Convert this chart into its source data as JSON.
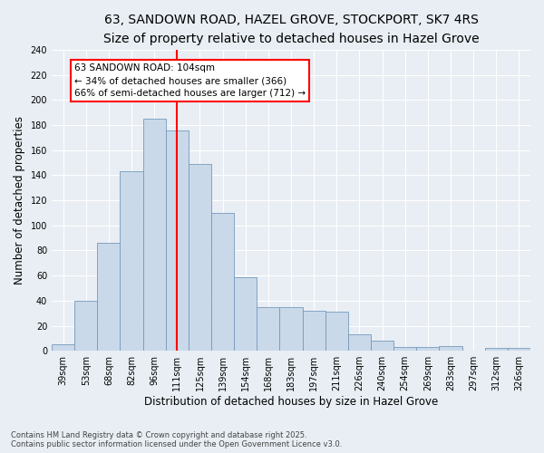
{
  "title_line1": "63, SANDOWN ROAD, HAZEL GROVE, STOCKPORT, SK7 4RS",
  "title_line2": "Size of property relative to detached houses in Hazel Grove",
  "xlabel": "Distribution of detached houses by size in Hazel Grove",
  "ylabel": "Number of detached properties",
  "categories": [
    "39sqm",
    "53sqm",
    "68sqm",
    "82sqm",
    "96sqm",
    "111sqm",
    "125sqm",
    "139sqm",
    "154sqm",
    "168sqm",
    "183sqm",
    "197sqm",
    "211sqm",
    "226sqm",
    "240sqm",
    "254sqm",
    "269sqm",
    "283sqm",
    "297sqm",
    "312sqm",
    "326sqm"
  ],
  "values": [
    5,
    40,
    86,
    143,
    185,
    176,
    149,
    110,
    59,
    35,
    35,
    32,
    31,
    13,
    8,
    3,
    3,
    4,
    0,
    2,
    2
  ],
  "bar_color": "#c9d9e9",
  "bar_edge_color": "#7799bb",
  "vline_x": 5,
  "vline_color": "red",
  "annotation_text": "63 SANDOWN ROAD: 104sqm\n← 34% of detached houses are smaller (366)\n66% of semi-detached houses are larger (712) →",
  "annotation_box_color": "white",
  "annotation_box_edge": "red",
  "bg_color": "#e8eef4",
  "grid_color": "white",
  "ylim": [
    0,
    240
  ],
  "yticks": [
    0,
    20,
    40,
    60,
    80,
    100,
    120,
    140,
    160,
    180,
    200,
    220,
    240
  ],
  "footer_line1": "Contains HM Land Registry data © Crown copyright and database right 2025.",
  "footer_line2": "Contains public sector information licensed under the Open Government Licence v3.0.",
  "title_fontsize": 10,
  "subtitle_fontsize": 9,
  "tick_fontsize": 7,
  "label_fontsize": 8.5,
  "annotation_fontsize": 7.5,
  "footer_fontsize": 6
}
